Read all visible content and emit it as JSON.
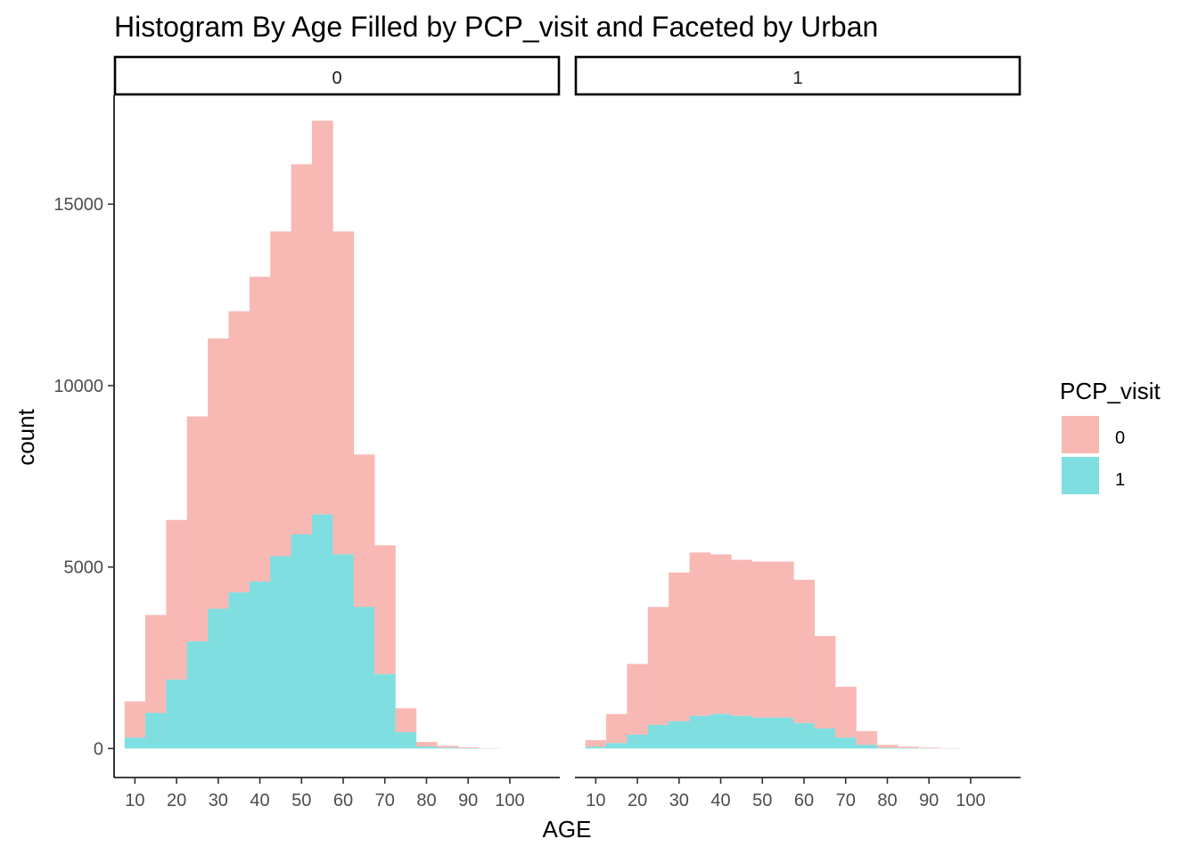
{
  "chart_data": {
    "type": "bar",
    "subtype": "stacked-histogram-faceted",
    "title": "Histogram By Age Filled by PCP_visit and Faceted by Urban",
    "xlabel": "AGE",
    "ylabel": "count",
    "x_ticks": [
      "10",
      "20",
      "30",
      "40",
      "50",
      "60",
      "70",
      "80",
      "90",
      "100"
    ],
    "y_ticks": [
      "0",
      "5000",
      "10000",
      "15000"
    ],
    "xlim": [
      5,
      112
    ],
    "ylim": [
      -800,
      18000
    ],
    "bin_width": 5,
    "bin_starts": [
      7.5,
      12.5,
      17.5,
      22.5,
      27.5,
      32.5,
      37.5,
      42.5,
      47.5,
      52.5,
      57.5,
      62.5,
      67.5,
      72.5,
      77.5,
      82.5,
      87.5,
      92.5
    ],
    "legend": {
      "title": "PCP_visit",
      "position": "right",
      "entries": [
        {
          "label": "0",
          "color": "#F8B9B5"
        },
        {
          "label": "1",
          "color": "#7FDFE0"
        }
      ]
    },
    "facets": [
      {
        "label": "0",
        "series": [
          {
            "name": "0",
            "values": [
              1000,
              2700,
              4400,
              6200,
              7450,
              7750,
              8400,
              8950,
              10200,
              10850,
              8900,
              4200,
              3550,
              660,
              130,
              55,
              28,
              10
            ]
          },
          {
            "name": "1",
            "values": [
              300,
              980,
              1900,
              2950,
              3850,
              4300,
              4600,
              5300,
              5900,
              6450,
              5350,
              3900,
              2050,
              450,
              50,
              20,
              8,
              3
            ]
          }
        ],
        "totals": [
          1300,
          3680,
          6300,
          9150,
          11300,
          12050,
          13000,
          14250,
          16100,
          17300,
          14250,
          8100,
          5600,
          1110,
          180,
          75,
          36,
          13
        ]
      },
      {
        "label": "1",
        "series": [
          {
            "name": "0",
            "values": [
              180,
              800,
              1950,
              3250,
              4100,
              4500,
              4400,
              4300,
              4300,
              4300,
              3950,
              2550,
              1400,
              380,
              80,
              40,
              20,
              8
            ]
          },
          {
            "name": "1",
            "values": [
              50,
              150,
              380,
              650,
              750,
              900,
              950,
              900,
              850,
              850,
              700,
              550,
              300,
              100,
              20,
              10,
              5,
              2
            ]
          }
        ],
        "totals": [
          230,
          950,
          2330,
          3900,
          4850,
          5400,
          5350,
          5200,
          5150,
          5150,
          4650,
          3100,
          1700,
          480,
          100,
          50,
          25,
          10
        ]
      }
    ]
  }
}
